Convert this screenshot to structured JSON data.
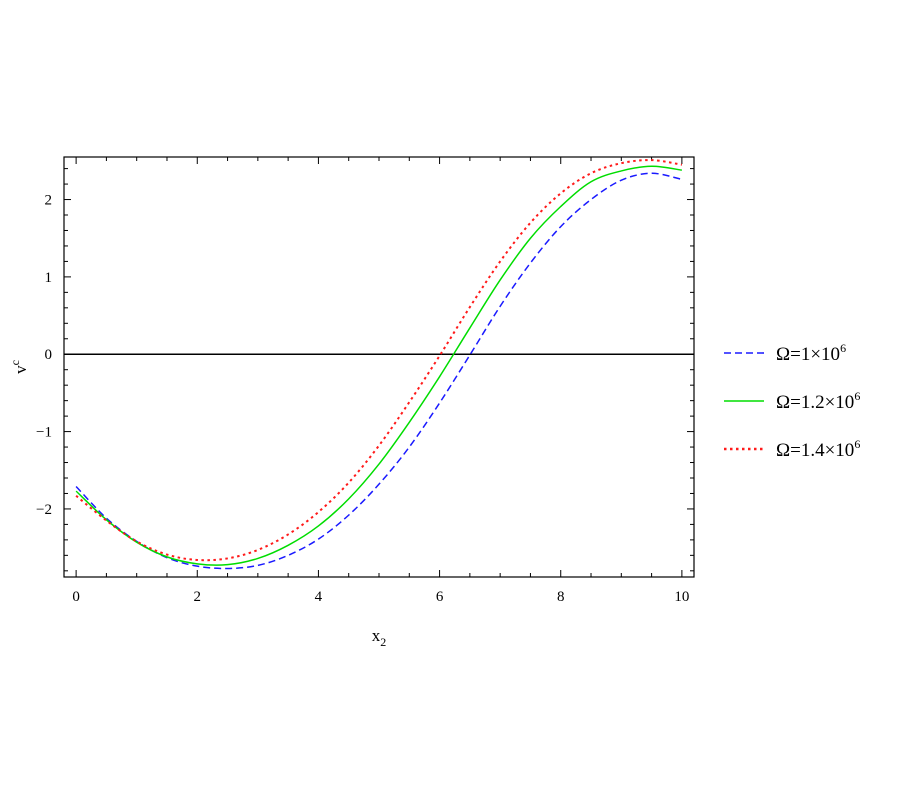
{
  "chart_data": {
    "type": "line",
    "title": "",
    "xlabel": {
      "base": "x",
      "sub": "2"
    },
    "ylabel": {
      "base": "v",
      "sup": "c"
    },
    "xlim": [
      -0.2,
      10.2
    ],
    "ylim": [
      -2.88,
      2.55
    ],
    "x_ticks": [
      0,
      2,
      4,
      6,
      8,
      10
    ],
    "x_tick_labels": [
      "0",
      "2",
      "4",
      "6",
      "8",
      "10"
    ],
    "y_ticks": [
      -2,
      -1,
      0,
      1,
      2
    ],
    "y_tick_labels": [
      "−2",
      "−1",
      "0",
      "1",
      "2"
    ],
    "grid": false,
    "reference_line": {
      "y": 0,
      "color": "#000000"
    },
    "legend_position": "right-outside",
    "x": [
      0,
      0.5,
      1,
      1.5,
      2,
      2.5,
      3,
      3.5,
      4,
      4.5,
      5,
      5.5,
      6,
      6.5,
      7,
      7.5,
      8,
      8.5,
      9,
      9.5,
      10
    ],
    "series": [
      {
        "name": "Ω=1×10",
        "name_sup": "6",
        "color": "#1a1aff",
        "style": "dashed",
        "values": [
          -1.71,
          -2.12,
          -2.42,
          -2.63,
          -2.74,
          -2.77,
          -2.73,
          -2.6,
          -2.39,
          -2.08,
          -1.68,
          -1.2,
          -0.63,
          -0.01,
          0.62,
          1.18,
          1.65,
          2.0,
          2.25,
          2.34,
          2.26
        ]
      },
      {
        "name": "Ω=1.2×10",
        "name_sup": "6",
        "color": "#00dd00",
        "style": "solid",
        "values": [
          -1.77,
          -2.14,
          -2.43,
          -2.62,
          -2.71,
          -2.72,
          -2.64,
          -2.47,
          -2.22,
          -1.87,
          -1.42,
          -0.88,
          -0.29,
          0.34,
          0.96,
          1.5,
          1.91,
          2.23,
          2.37,
          2.43,
          2.38
        ]
      },
      {
        "name": "Ω=1.4×10",
        "name_sup": "6",
        "color": "#ff1a1a",
        "style": "dotted",
        "values": [
          -1.83,
          -2.15,
          -2.42,
          -2.59,
          -2.66,
          -2.64,
          -2.53,
          -2.33,
          -2.04,
          -1.66,
          -1.18,
          -0.62,
          -0.02,
          0.61,
          1.2,
          1.7,
          2.08,
          2.34,
          2.47,
          2.51,
          2.45
        ]
      }
    ]
  }
}
